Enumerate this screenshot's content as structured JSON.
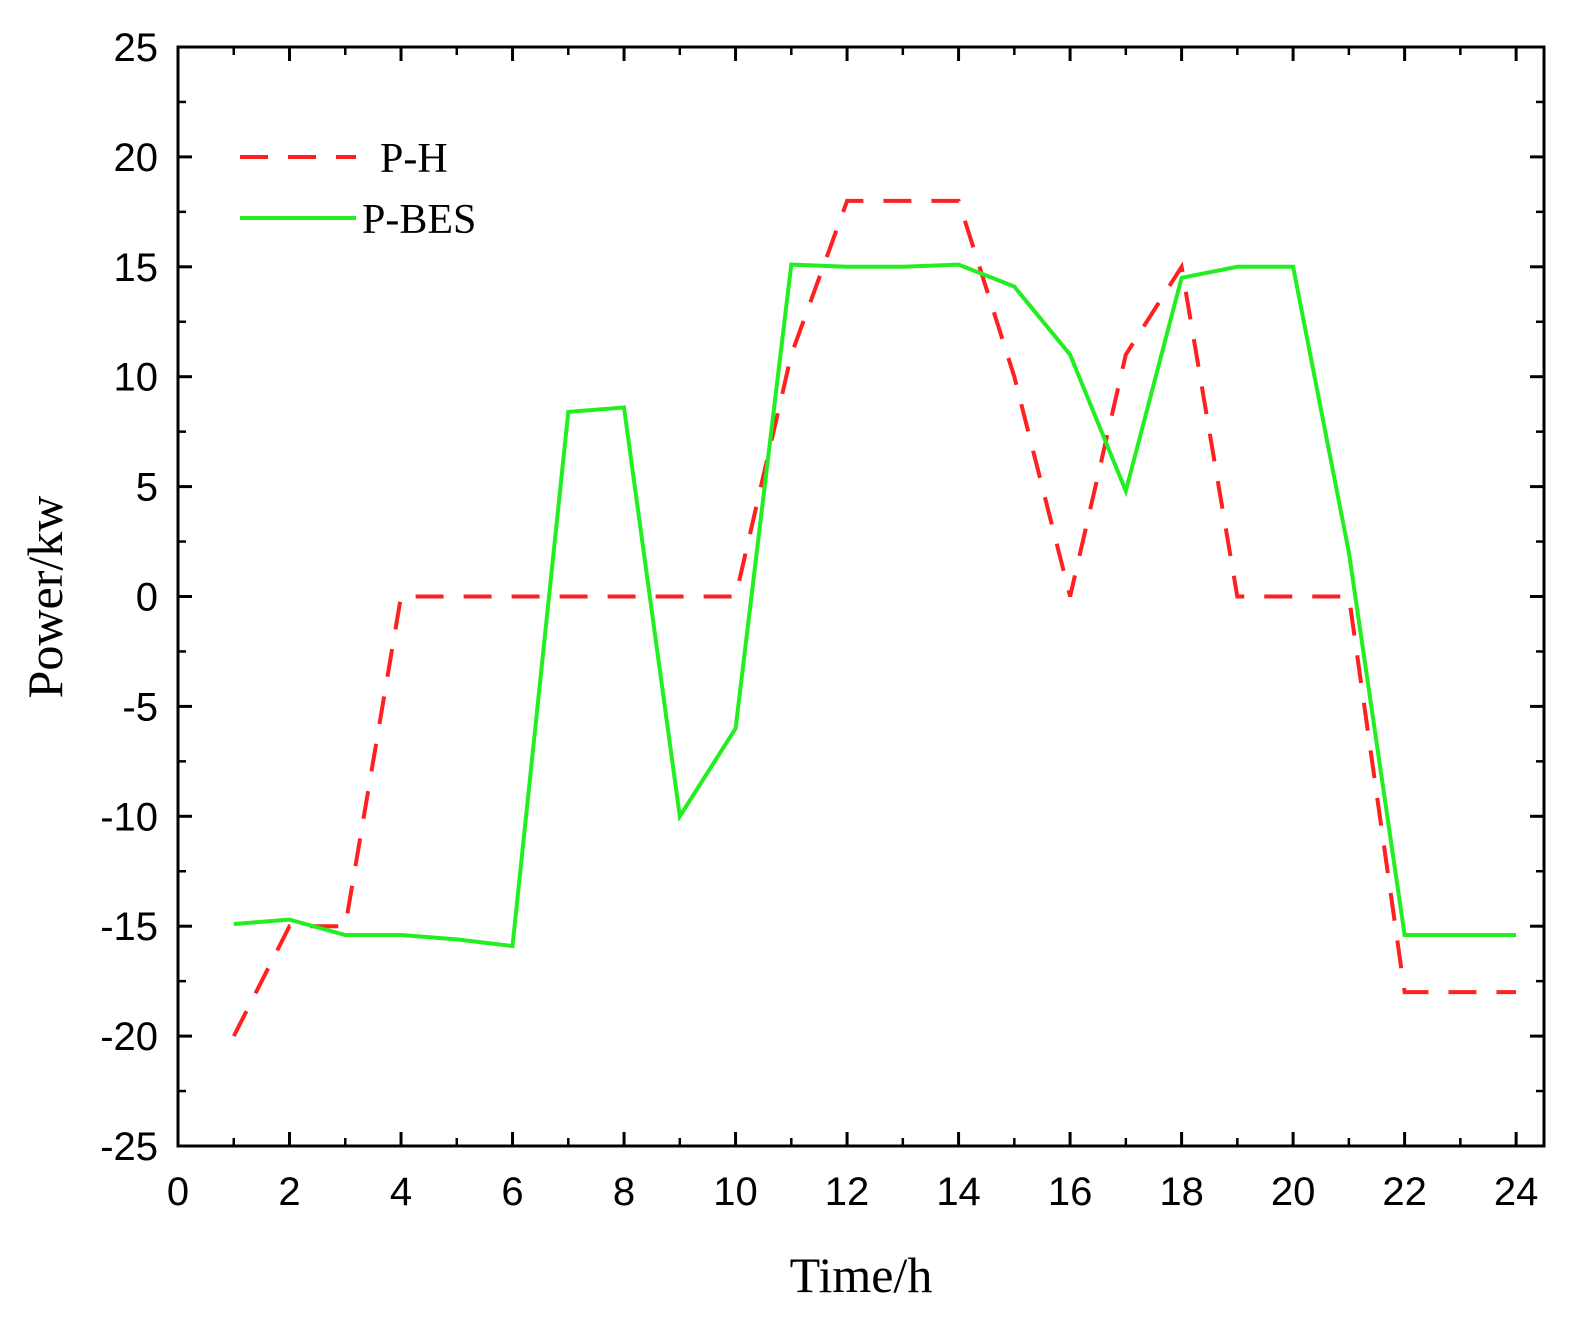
{
  "chart_data": {
    "type": "line",
    "title": "",
    "xlabel": "Time/h",
    "ylabel": "Power/kw",
    "xlim": [
      0,
      24.5
    ],
    "ylim": [
      -25,
      25
    ],
    "xticks": [
      0,
      2,
      4,
      6,
      8,
      10,
      12,
      14,
      16,
      18,
      20,
      22,
      24
    ],
    "xticks_minor": [
      1,
      3,
      5,
      7,
      9,
      11,
      13,
      15,
      17,
      19,
      21,
      23
    ],
    "yticks": [
      -25,
      -20,
      -15,
      -10,
      -5,
      0,
      5,
      10,
      15,
      20,
      25
    ],
    "yticks_minor": [
      -22.5,
      -17.5,
      -12.5,
      -7.5,
      -2.5,
      2.5,
      7.5,
      12.5,
      17.5,
      22.5
    ],
    "grid": false,
    "legend_position": "top-left",
    "series": [
      {
        "name": "P-H",
        "color": "#ff2020",
        "style": "dashed",
        "x": [
          1,
          2,
          3,
          4,
          5,
          6,
          7,
          8,
          9,
          10,
          11,
          12,
          13,
          14,
          15,
          16,
          17,
          18,
          19,
          20,
          21,
          22,
          23,
          24
        ],
        "y": [
          -20,
          -15,
          -15,
          0,
          0,
          0,
          0,
          0,
          0,
          0,
          11,
          18,
          18,
          18,
          10,
          0,
          11,
          15,
          0,
          0,
          0,
          -18,
          -18,
          -18
        ]
      },
      {
        "name": "P-BES",
        "color": "#22ee22",
        "style": "solid",
        "x": [
          1,
          2,
          3,
          4,
          5,
          6,
          7,
          8,
          9,
          10,
          11,
          12,
          13,
          14,
          15,
          16,
          17,
          18,
          19,
          20,
          21,
          22,
          23,
          24
        ],
        "y": [
          -14.9,
          -14.7,
          -15.4,
          -15.4,
          -15.6,
          -15.9,
          8.4,
          8.6,
          -10,
          -6,
          15.1,
          15,
          15,
          15.1,
          14.1,
          11,
          4.8,
          14.5,
          15,
          15,
          2,
          -15.4,
          -15.4,
          -15.4
        ]
      }
    ]
  }
}
